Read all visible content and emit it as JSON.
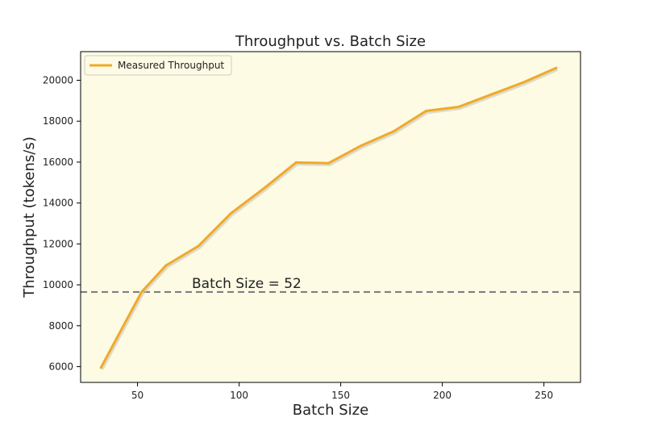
{
  "chart_data": {
    "type": "line",
    "title": "Throughput vs. Batch Size",
    "xlabel": "Batch Size",
    "ylabel": "Throughput (tokens/s)",
    "xlim": [
      22,
      268
    ],
    "ylim": [
      5230,
      21400
    ],
    "x_ticks": [
      50,
      100,
      150,
      200,
      250
    ],
    "y_ticks": [
      6000,
      8000,
      10000,
      12000,
      14000,
      16000,
      18000,
      20000
    ],
    "grid": false,
    "legend_position": "top-left",
    "background_color": "#fdfbe4",
    "series": [
      {
        "name": "Measured Throughput",
        "color": "#f0a92a",
        "x": [
          32,
          52,
          64,
          80,
          96,
          112,
          128,
          144,
          160,
          176,
          192,
          208,
          224,
          240,
          256
        ],
        "values": [
          5950,
          9650,
          10950,
          11900,
          13500,
          14700,
          15980,
          15950,
          16800,
          17500,
          18500,
          18700,
          19300,
          19900,
          20600
        ]
      }
    ],
    "reference_line": {
      "y": 9650,
      "label": "Batch Size = 52",
      "color": "#7f7f7f"
    }
  }
}
